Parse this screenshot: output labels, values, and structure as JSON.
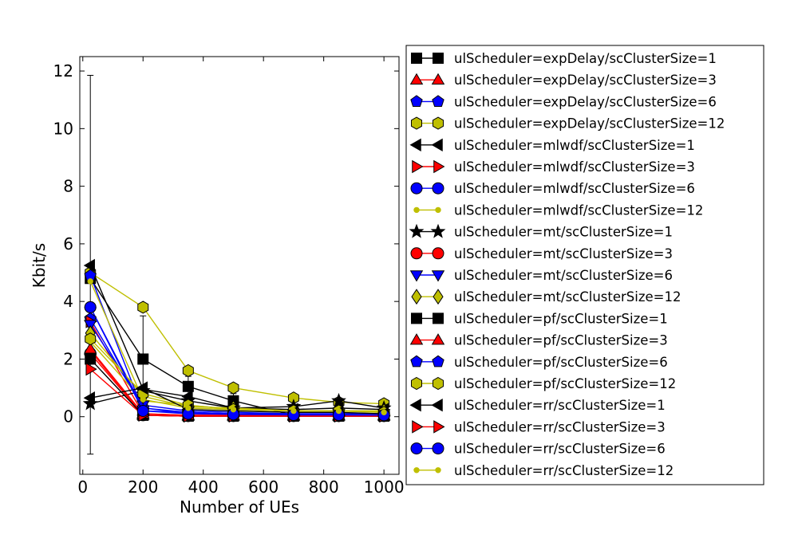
{
  "chart_data": {
    "type": "line",
    "xlabel": "Number of UEs",
    "ylabel": "Kbit/s",
    "xlim": [
      -10,
      1050
    ],
    "ylim": [
      -2,
      12.5
    ],
    "xticks": [
      "0",
      "200",
      "400",
      "600",
      "800",
      "1000"
    ],
    "yticks": [
      "0",
      "2",
      "4",
      "6",
      "8",
      "10",
      "12"
    ],
    "grid": false,
    "legend_position": "outside-right",
    "x": [
      25,
      200,
      350,
      500,
      700,
      850,
      1000
    ],
    "series": [
      {
        "name": "ulScheduler=expDelay/scClusterSize=1",
        "color": "#000000",
        "marker": "square",
        "values": [
          4.8,
          2.0,
          1.05,
          0.55,
          0.05,
          0.05,
          0.05
        ],
        "err_lo": [
          -1.3,
          0.5,
          0.7,
          0.3,
          0.05,
          0.05,
          0.05
        ],
        "err_hi": [
          11.85,
          3.5,
          1.4,
          0.8,
          0.05,
          0.05,
          0.05
        ]
      },
      {
        "name": "ulScheduler=expDelay/scClusterSize=3",
        "color": "#ff0000",
        "marker": "triangle-up",
        "values": [
          2.3,
          0.05,
          0.02,
          0.02,
          0.02,
          0.02,
          0.02
        ]
      },
      {
        "name": "ulScheduler=expDelay/scClusterSize=6",
        "color": "#0000ff",
        "marker": "pentagon",
        "values": [
          3.4,
          0.3,
          0.12,
          0.08,
          0.06,
          0.06,
          0.05
        ]
      },
      {
        "name": "ulScheduler=expDelay/scClusterSize=12",
        "color": "#bfbf00",
        "marker": "hexagon",
        "values": [
          5.0,
          3.8,
          1.6,
          1.0,
          0.65,
          0.5,
          0.45
        ]
      },
      {
        "name": "ulScheduler=mlwdf/scClusterSize=1",
        "color": "#000000",
        "marker": "triangle-left",
        "values": [
          5.25,
          0.95,
          0.7,
          0.3,
          0.25,
          0.3,
          0.25
        ]
      },
      {
        "name": "ulScheduler=mlwdf/scClusterSize=3",
        "color": "#ff0000",
        "marker": "triangle-right",
        "values": [
          3.3,
          0.1,
          0.05,
          0.05,
          0.05,
          0.05,
          0.05
        ]
      },
      {
        "name": "ulScheduler=mlwdf/scClusterSize=6",
        "color": "#0000ff",
        "marker": "circle",
        "values": [
          3.8,
          0.3,
          0.15,
          0.1,
          0.1,
          0.1,
          0.1
        ]
      },
      {
        "name": "ulScheduler=mlwdf/scClusterSize=12",
        "color": "#bfbf00",
        "marker": "small-circle",
        "values": [
          2.6,
          0.55,
          0.4,
          0.25,
          0.2,
          0.2,
          0.2
        ]
      },
      {
        "name": "ulScheduler=mt/scClusterSize=1",
        "color": "#000000",
        "marker": "star",
        "values": [
          0.45,
          0.9,
          0.55,
          0.3,
          0.35,
          0.55,
          0.3
        ]
      },
      {
        "name": "ulScheduler=mt/scClusterSize=3",
        "color": "#ff0000",
        "marker": "circle",
        "values": [
          2.2,
          0.05,
          0.02,
          0.02,
          0.02,
          0.02,
          0.02
        ]
      },
      {
        "name": "ulScheduler=mt/scClusterSize=6",
        "color": "#0000ff",
        "marker": "triangle-down",
        "values": [
          3.2,
          0.4,
          0.2,
          0.15,
          0.1,
          0.1,
          0.1
        ]
      },
      {
        "name": "ulScheduler=mt/scClusterSize=12",
        "color": "#bfbf00",
        "marker": "diamond",
        "values": [
          2.9,
          0.7,
          0.35,
          0.3,
          0.2,
          0.2,
          0.2
        ]
      },
      {
        "name": "ulScheduler=pf/scClusterSize=1",
        "color": "#000000",
        "marker": "square",
        "values": [
          2.0,
          0.05,
          0.02,
          0.02,
          0.02,
          0.02,
          0.02
        ]
      },
      {
        "name": "ulScheduler=pf/scClusterSize=3",
        "color": "#ff0000",
        "marker": "triangle-up",
        "values": [
          2.35,
          0.1,
          0.05,
          0.05,
          0.05,
          0.05,
          0.05
        ]
      },
      {
        "name": "ulScheduler=pf/scClusterSize=6",
        "color": "#0000ff",
        "marker": "pentagon",
        "values": [
          4.9,
          0.2,
          0.15,
          0.1,
          0.1,
          0.1,
          0.1
        ]
      },
      {
        "name": "ulScheduler=pf/scClusterSize=12",
        "color": "#bfbf00",
        "marker": "hexagon",
        "values": [
          2.7,
          0.8,
          0.4,
          0.25,
          0.2,
          0.2,
          0.15
        ]
      },
      {
        "name": "ulScheduler=rr/scClusterSize=1",
        "color": "#000000",
        "marker": "triangle-left",
        "values": [
          0.65,
          1.0,
          0.25,
          0.2,
          0.15,
          0.15,
          0.1
        ]
      },
      {
        "name": "ulScheduler=rr/scClusterSize=3",
        "color": "#ff0000",
        "marker": "triangle-right",
        "values": [
          1.65,
          0.05,
          0.02,
          0.02,
          0.02,
          0.02,
          0.02
        ]
      },
      {
        "name": "ulScheduler=rr/scClusterSize=6",
        "color": "#0000ff",
        "marker": "circle",
        "values": [
          3.8,
          0.2,
          0.1,
          0.08,
          0.06,
          0.06,
          0.05
        ]
      },
      {
        "name": "ulScheduler=rr/scClusterSize=12",
        "color": "#bfbf00",
        "marker": "small-circle",
        "values": [
          4.7,
          0.6,
          0.3,
          0.25,
          0.2,
          0.2,
          0.15
        ]
      }
    ]
  }
}
